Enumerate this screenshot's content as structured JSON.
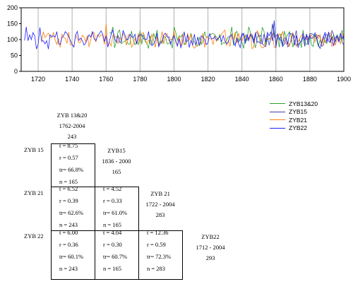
{
  "chart_data": {
    "type": "line",
    "xlim": [
      1710,
      1900
    ],
    "ylim": [
      0,
      200
    ],
    "x_ticks": [
      1720,
      1740,
      1760,
      1780,
      1800,
      1820,
      1840,
      1860,
      1880,
      1900
    ],
    "y_ticks": [
      0,
      50,
      100,
      150,
      200
    ],
    "grid": "vertical",
    "legend_position": "below-right",
    "series": [
      {
        "name": "ZYB13&20",
        "color": "#2ca02c",
        "start": 1762,
        "end": 1900,
        "peaks": [
          [
            1764,
            140
          ],
          [
            1768,
            130
          ],
          [
            1780,
            128
          ],
          [
            1790,
            130
          ],
          [
            1800,
            140
          ],
          [
            1818,
            125
          ],
          [
            1834,
            140
          ],
          [
            1844,
            140
          ],
          [
            1852,
            138
          ],
          [
            1858,
            148
          ],
          [
            1868,
            125
          ],
          [
            1876,
            130
          ],
          [
            1888,
            110
          ],
          [
            1899,
            130
          ]
        ]
      },
      {
        "name": "ZYB15",
        "color": "#3f3fa8",
        "start": 1836,
        "end": 1900,
        "peaks": [
          [
            1840,
            120
          ],
          [
            1848,
            122
          ],
          [
            1858,
            150
          ],
          [
            1866,
            105
          ],
          [
            1870,
            120
          ],
          [
            1878,
            118
          ],
          [
            1886,
            110
          ],
          [
            1894,
            115
          ]
        ]
      },
      {
        "name": "ZYB21",
        "color": "#ff7f0e",
        "start": 1722,
        "end": 1900,
        "peaks": [
          [
            1726,
            120
          ],
          [
            1736,
            105
          ],
          [
            1744,
            90
          ],
          [
            1760,
            150
          ],
          [
            1770,
            120
          ],
          [
            1782,
            122
          ],
          [
            1796,
            118
          ],
          [
            1808,
            120
          ],
          [
            1820,
            105
          ],
          [
            1830,
            130
          ],
          [
            1838,
            120
          ],
          [
            1848,
            115
          ],
          [
            1858,
            120
          ],
          [
            1876,
            112
          ],
          [
            1888,
            105
          ]
        ]
      },
      {
        "name": "ZYB22",
        "color": "#1f1fff",
        "start": 1712,
        "end": 1900,
        "peaks": [
          [
            1713,
            140
          ],
          [
            1716,
            100
          ],
          [
            1721,
            138
          ],
          [
            1728,
            110
          ],
          [
            1736,
            125
          ],
          [
            1742,
            112
          ],
          [
            1750,
            115
          ],
          [
            1756,
            118
          ],
          [
            1760,
            112
          ],
          [
            1764,
            130
          ],
          [
            1770,
            128
          ],
          [
            1780,
            115
          ],
          [
            1790,
            120
          ],
          [
            1800,
            112
          ],
          [
            1808,
            115
          ],
          [
            1816,
            112
          ],
          [
            1824,
            110
          ],
          [
            1834,
            115
          ],
          [
            1840,
            112
          ],
          [
            1848,
            120
          ],
          [
            1856,
            112
          ],
          [
            1859,
            160
          ],
          [
            1866,
            105
          ],
          [
            1870,
            118
          ],
          [
            1880,
            112
          ],
          [
            1888,
            110
          ],
          [
            1896,
            112
          ]
        ]
      }
    ]
  },
  "legend": [
    {
      "label": "ZYB13&20",
      "color": "#2ca02c"
    },
    {
      "label": "ZYB15",
      "color": "#3f3fa8"
    },
    {
      "label": "ZYB21",
      "color": "#ff7f0e"
    },
    {
      "label": "ZYB22",
      "color": "#1f1fff"
    }
  ],
  "matrix": {
    "headers": [
      {
        "name": "ZYB 13&20",
        "range": "1762-2004",
        "n": "243"
      },
      {
        "name": "ZYB15",
        "range": "1836 - 2000",
        "n": "165"
      },
      {
        "name": "ZYB 21",
        "range": "1722 - 2004",
        "n": "283"
      },
      {
        "name": "ZYB22",
        "range": "1712 - 2004",
        "n": "293"
      }
    ],
    "row_labels": [
      "ZYB 15",
      "ZYB 21",
      "ZYB 22"
    ],
    "cells": {
      "r1c1": {
        "t": "t = 8.75",
        "r": "r = 0.57",
        "tr": "tr= 66.8%",
        "n": "n = 165"
      },
      "r2c1": {
        "t": "t = 6.52",
        "r": "r = 0.39",
        "tr": "tr= 62.6%",
        "n": "n = 243"
      },
      "r2c2": {
        "t": "t = 4.52",
        "r": "r = 0.33",
        "tr": "tr= 61.0%",
        "n": "n = 165"
      },
      "r3c1": {
        "t": "t = 6.00",
        "r": "r = 0.36",
        "tr": "tr= 60.1%",
        "n": "n = 243"
      },
      "r3c2": {
        "t": "t = 4.04",
        "r": "r = 0.30",
        "tr": "tr= 60.7%",
        "n": "n = 165"
      },
      "r3c3": {
        "t": "t = 12.36",
        "r": "r = 0.59",
        "tr": "tr= 72.3%",
        "n": "n = 283"
      }
    }
  }
}
